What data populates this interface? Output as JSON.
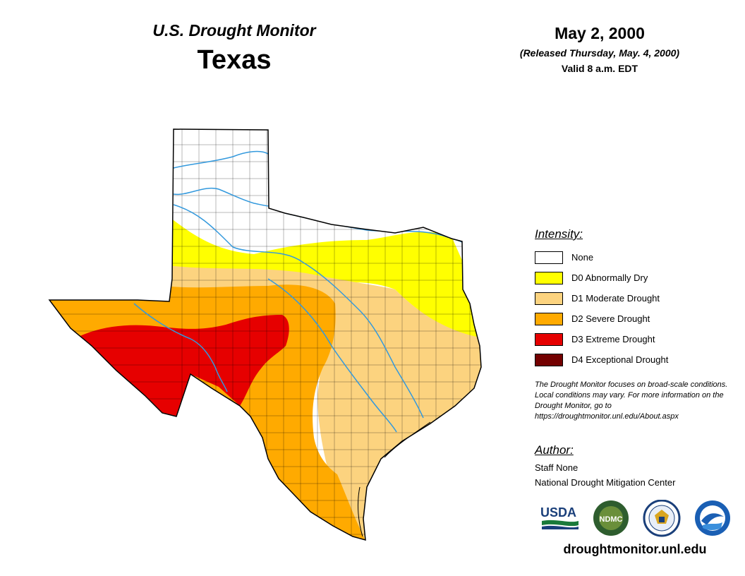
{
  "header": {
    "subtitle": "U.S. Drought Monitor",
    "state": "Texas",
    "date": "May 2, 2000",
    "released": "(Released Thursday, May. 4, 2000)",
    "valid": "Valid 8 a.m. EDT"
  },
  "legend": {
    "title": "Intensity:",
    "items": [
      {
        "label": "None",
        "color": "#ffffff"
      },
      {
        "label": "D0 Abnormally Dry",
        "color": "#ffff00"
      },
      {
        "label": "D1 Moderate Drought",
        "color": "#fcd37f"
      },
      {
        "label": "D2 Severe Drought",
        "color": "#ffaa00"
      },
      {
        "label": "D3 Extreme Drought",
        "color": "#e60000"
      },
      {
        "label": "D4 Exceptional Drought",
        "color": "#730000"
      }
    ]
  },
  "note": "The Drought Monitor focuses on broad-scale conditions. Local conditions may vary. For more information on the Drought Monitor, go to https://droughtmonitor.unl.edu/About.aspx",
  "author": {
    "title": "Author:",
    "name": "Staff None",
    "org": "National Drought Mitigation Center"
  },
  "logos": {
    "usda": "USDA",
    "ndmc": "NDMC",
    "commerce_icon": "department-of-commerce-seal-icon",
    "noaa_icon": "noaa-seal-icon"
  },
  "website": "droughtmonitor.unl.edu",
  "map_colors": {
    "river": "#3399dd",
    "county_line": "#000000"
  }
}
